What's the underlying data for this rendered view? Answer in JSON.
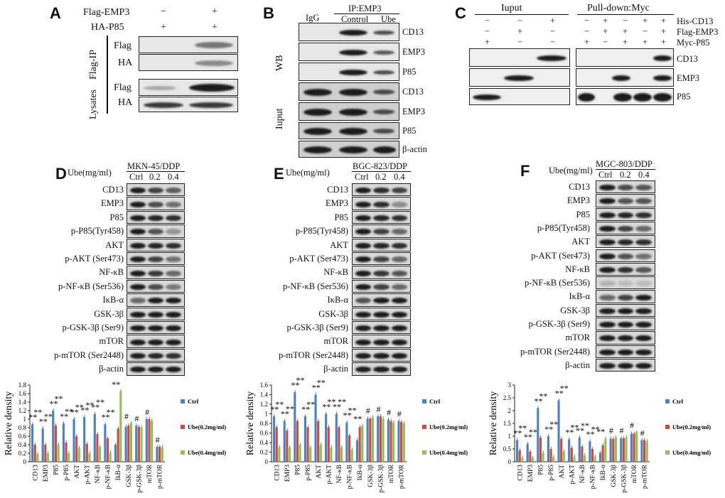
{
  "panels": {
    "A": {
      "letter": "A",
      "headers": [
        {
          "label": "Flag-EMP3",
          "marks": [
            "−",
            "+"
          ]
        },
        {
          "label": "HA-P85",
          "marks": [
            "+",
            "+"
          ]
        }
      ],
      "groups": [
        {
          "label": "Flag-IP",
          "rows": [
            "Flag",
            "HA"
          ]
        },
        {
          "label": "Lysates",
          "rows": [
            "Flag",
            "HA"
          ]
        }
      ]
    },
    "B": {
      "letter": "B",
      "igg": "IgG",
      "ip": "IP:EMP3",
      "lanes": [
        "Control",
        "Ube"
      ],
      "groups": [
        {
          "label": "WB",
          "rows": [
            "CD13",
            "EMP3",
            "P85"
          ]
        },
        {
          "label": "Iuput",
          "rows": [
            "CD13",
            "EMP3",
            "P85",
            "β-actin"
          ]
        }
      ]
    },
    "C": {
      "letter": "C",
      "input_title": "Iuput",
      "pulldown_title": "Pull-down:Myc",
      "header_labels": [
        "His-CD13",
        "Flag-EMP3",
        "Myc-P85"
      ],
      "marks": [
        [
          "−",
          "−",
          "+",
          "−",
          "+",
          "−",
          "+",
          "+"
        ],
        [
          "−",
          "+",
          "−",
          "−",
          "+",
          "+",
          "−",
          "+"
        ],
        [
          "+",
          "−",
          "−",
          "+",
          "−",
          "+",
          "+",
          "+"
        ]
      ],
      "rows": [
        "CD13",
        "EMP3",
        "P85"
      ]
    },
    "D": {
      "letter": "D",
      "ube_label": "Ube(mg/ml)",
      "cell_line": "MKN-45/DDP",
      "doses": [
        "Ctrl",
        "0.2",
        "0.4"
      ]
    },
    "E": {
      "letter": "E",
      "ube_label": "Ube(mg/ml)",
      "cell_line": "BGC-823/DDP",
      "doses": [
        "Ctrl",
        "0.2",
        "0.4"
      ]
    },
    "F": {
      "letter": "F",
      "ube_label": "Ube(mg/ml)",
      "cell_line": "MGC-803/DDP",
      "doses": [
        "Ctrl",
        "0.2",
        "0.4"
      ]
    }
  },
  "blot_rows": [
    "CD13",
    "EMP3",
    "P85",
    "p-P85(Tyr458)",
    "AKT",
    "p-AKT (Ser473)",
    "NF-κB",
    "p-NF-κB (Ser536)",
    "IκB-α",
    "GSK-3β",
    "p-GSK-3β (Ser9)",
    "mTOR",
    "p-mTOR (Ser2448)",
    "β-actin"
  ],
  "chart_data": [
    {
      "panel": "D",
      "type": "bar",
      "ylabel": "Relative density",
      "ylim": [
        0,
        1.8
      ],
      "yticks": [
        "0",
        "0.2",
        "0.4",
        "0.6",
        "0.8",
        "1",
        "1.2",
        "1.4",
        "1.6",
        "1.8"
      ],
      "categories": [
        "CD13",
        "EMP3",
        "P85",
        "p-P85",
        "AKT",
        "p-AKT",
        "NF-κB",
        "p-NF-κB",
        "IkB-α",
        "GSK-3β",
        "p-GSK-3β",
        "mTOR",
        "p-mTOR"
      ],
      "series": [
        {
          "name": "Ctrl",
          "color": "#4f81bd",
          "values": [
            0.88,
            0.78,
            1.2,
            0.9,
            1.0,
            1.05,
            1.12,
            0.88,
            0.4,
            0.82,
            0.85,
            1.0,
            0.35
          ]
        },
        {
          "name": "Ube(0.2mg/ml)",
          "color": "#c0504d",
          "values": [
            0.4,
            0.4,
            0.85,
            0.45,
            0.6,
            0.42,
            0.65,
            0.55,
            0.78,
            0.85,
            0.82,
            1.0,
            0.35
          ]
        },
        {
          "name": "Ube(0.4mg/ml)",
          "color": "#9bbb59",
          "values": [
            0.18,
            0.2,
            0.4,
            0.2,
            0.32,
            0.2,
            0.35,
            0.22,
            1.65,
            0.9,
            0.8,
            0.96,
            0.34
          ]
        }
      ],
      "annotations": [
        "**",
        "**",
        "**",
        "**",
        "**",
        "**",
        "**",
        "**",
        "**",
        "**",
        "**",
        "**",
        "**",
        "**",
        "**",
        "**",
        "**",
        "#",
        "#",
        "#",
        "#"
      ]
    },
    {
      "panel": "E",
      "type": "bar",
      "ylabel": "Relative density",
      "ylim": [
        0,
        1.6
      ],
      "yticks": [
        "0",
        "0.2",
        "0.4",
        "0.6",
        "0.8",
        "1",
        "1.2",
        "1.4",
        "1.6"
      ],
      "categories": [
        "CD13",
        "EMP3",
        "P85",
        "p-P85",
        "AKT",
        "p-AKT",
        "NF-κB",
        "p-NF-κB",
        "IkB-α",
        "GSK-3β",
        "p-GSK-3β",
        "mTOR",
        "p-mTOR"
      ],
      "series": [
        {
          "name": "Ctrl",
          "color": "#4f81bd",
          "values": [
            0.95,
            0.85,
            1.45,
            0.95,
            1.4,
            1.0,
            1.0,
            0.82,
            0.45,
            0.9,
            0.95,
            0.88,
            0.85
          ]
        },
        {
          "name": "Ube(0.2mg/ml)",
          "color": "#c0504d",
          "values": [
            0.72,
            0.65,
            0.85,
            0.72,
            0.85,
            0.72,
            0.72,
            0.55,
            0.72,
            0.9,
            0.95,
            0.85,
            0.83
          ]
        },
        {
          "name": "Ube(0.4mg/ml)",
          "color": "#9bbb59",
          "values": [
            0.3,
            0.3,
            0.35,
            0.3,
            0.35,
            0.3,
            0.3,
            0.25,
            0.75,
            0.92,
            0.9,
            0.82,
            0.8
          ]
        }
      ],
      "annotations": [
        "**",
        "**",
        "**",
        "**",
        "**",
        "**",
        "**",
        "**",
        "**",
        "**",
        "**",
        "**",
        "**",
        "**",
        "**",
        "**",
        "**",
        "#",
        "#",
        "#",
        "#"
      ]
    },
    {
      "panel": "F",
      "type": "bar",
      "ylabel": "Relative density",
      "ylim": [
        0,
        3
      ],
      "yticks": [
        "0",
        "0.5",
        "1",
        "1.5",
        "2",
        "2.5",
        "3"
      ],
      "categories": [
        "CD13",
        "EMP3",
        "P85",
        "p-P85",
        "AKT",
        "p-AKT",
        "NF-κB",
        "p-NF-κB",
        "IkB-α",
        "GSK-3β",
        "p-GSK-3β",
        "mTOR",
        "p-mTOR"
      ],
      "series": [
        {
          "name": "Ctrl",
          "color": "#4f81bd",
          "values": [
            0.85,
            0.7,
            2.1,
            1.0,
            2.4,
            0.88,
            0.95,
            0.8,
            0.35,
            0.9,
            0.92,
            1.1,
            0.85
          ]
        },
        {
          "name": "Ube(0.2mg/ml)",
          "color": "#c0504d",
          "values": [
            0.45,
            0.4,
            0.95,
            0.5,
            0.9,
            0.55,
            0.6,
            0.5,
            0.65,
            0.9,
            0.92,
            1.1,
            0.85
          ]
        },
        {
          "name": "Ube(0.4mg/ml)",
          "color": "#9bbb59",
          "values": [
            0.15,
            0.15,
            0.35,
            0.18,
            0.4,
            0.2,
            0.25,
            0.2,
            0.9,
            0.95,
            0.95,
            1.15,
            0.8
          ]
        }
      ],
      "annotations": [
        "**",
        "**",
        "**",
        "**",
        "**",
        "**",
        "**",
        "**",
        "**",
        "**",
        "**",
        "**",
        "**",
        "**",
        "**",
        "**",
        "**",
        "#",
        "#",
        "#",
        "#"
      ]
    }
  ]
}
